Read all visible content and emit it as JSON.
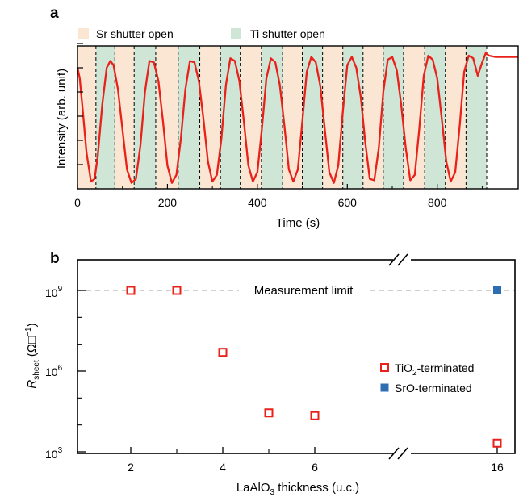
{
  "chart_data": [
    {
      "panel": "a",
      "type": "line",
      "xlabel": "Time (s)",
      "ylabel": "Intensity (arb. unit)",
      "xlim": [
        0,
        980
      ],
      "xticks": [
        "0",
        "200",
        "400",
        "600",
        "800"
      ],
      "xtick_values": [
        0,
        200,
        400,
        600,
        800
      ],
      "legend": [
        {
          "label": "Sr shutter open",
          "color": "#fbe6d3"
        },
        {
          "label": "Ti shutter open",
          "color": "#cfe6d6"
        }
      ],
      "shutter_boundaries_s": [
        0,
        41,
        83,
        126,
        174,
        224,
        272,
        318,
        362,
        409,
        456,
        500,
        545,
        590,
        635,
        680,
        725,
        772,
        818,
        864,
        910
      ],
      "first_shutter": "Sr",
      "curve_color": "#e8211a",
      "series": [
        {
          "x": [
            0,
            5,
            12,
            20,
            30,
            38,
            45,
            55,
            65,
            73,
            80,
            90,
            100,
            110,
            120,
            130,
            140,
            150,
            160,
            170,
            180,
            190,
            200,
            210,
            220,
            230,
            240,
            250,
            260,
            270,
            280,
            290,
            300,
            310,
            320,
            330,
            340,
            350,
            360,
            370,
            380,
            390,
            400,
            410,
            420,
            430,
            440,
            450,
            460,
            470,
            480,
            490,
            500,
            510,
            520,
            530,
            540,
            550,
            560,
            570,
            580,
            590,
            600,
            610,
            620,
            630,
            640,
            650,
            660,
            670,
            680,
            690,
            700,
            710,
            720,
            730,
            740,
            750,
            760,
            770,
            780,
            790,
            800,
            810,
            820,
            830,
            840,
            850,
            860,
            870,
            880,
            890,
            900,
            908,
            915,
            930,
            950,
            980
          ],
          "y": [
            0.88,
            0.8,
            0.55,
            0.25,
            0.03,
            0.05,
            0.22,
            0.6,
            0.88,
            0.93,
            0.9,
            0.72,
            0.42,
            0.12,
            0.02,
            0.05,
            0.3,
            0.7,
            0.93,
            0.92,
            0.78,
            0.48,
            0.15,
            0.02,
            0.08,
            0.35,
            0.72,
            0.93,
            0.92,
            0.78,
            0.5,
            0.18,
            0.03,
            0.08,
            0.35,
            0.75,
            0.95,
            0.93,
            0.78,
            0.48,
            0.15,
            0.03,
            0.1,
            0.42,
            0.8,
            0.95,
            0.92,
            0.75,
            0.45,
            0.12,
            0.03,
            0.12,
            0.48,
            0.85,
            0.96,
            0.92,
            0.74,
            0.42,
            0.1,
            0.02,
            0.15,
            0.55,
            0.9,
            0.96,
            0.88,
            0.66,
            0.32,
            0.05,
            0.04,
            0.28,
            0.7,
            0.94,
            0.96,
            0.86,
            0.6,
            0.28,
            0.04,
            0.08,
            0.42,
            0.82,
            0.97,
            0.94,
            0.8,
            0.5,
            0.18,
            0.03,
            0.1,
            0.45,
            0.85,
            0.97,
            0.95,
            0.82,
            0.92,
            0.99,
            0.97,
            0.96,
            0.96,
            0.96
          ]
        }
      ]
    },
    {
      "panel": "b",
      "type": "scatter",
      "xlabel": "LaAlO₃ thickness (u.c.)",
      "ylabel": "R_sheet (Ω□⁻¹)",
      "y_scale": "log",
      "ylim": [
        1000,
        3000000000
      ],
      "yticks": [
        1000,
        1000000,
        1000000000
      ],
      "xticks": [
        "2",
        "4",
        "6",
        "16"
      ],
      "x_axis_break": true,
      "annotation": "Measurement limit",
      "measurement_limit": 1000000000,
      "series": [
        {
          "name": "TiO₂-terminated",
          "marker": "open-square",
          "color": "#e8211a",
          "x": [
            2,
            3,
            4,
            5,
            6,
            16
          ],
          "y": [
            1000000000,
            1000000000,
            5000000,
            28000,
            22000,
            2100
          ]
        },
        {
          "name": "SrO-terminated",
          "marker": "filled-square",
          "color": "#2f6db3",
          "x": [
            16
          ],
          "y": [
            1000000000
          ]
        }
      ]
    }
  ],
  "labels": {
    "panel_a": "a",
    "panel_b": "b",
    "a_xlabel": "Time (s)",
    "a_ylabel": "Intensity (arb. unit)",
    "a_legend_sr": "Sr shutter open",
    "a_legend_ti": "Ti shutter open",
    "b_xlabel_main": "LaAlO",
    "b_xlabel_sub": "3",
    "b_xlabel_rest": " thickness (u.c.)",
    "b_ylabel_main": "R",
    "b_ylabel_sub": "sheet",
    "b_ylabel_unit": " (Ω□",
    "b_ylabel_sup": "−1",
    "b_ylabel_close": ")",
    "b_annotation": "Measurement limit",
    "b_legend_ti_main": "TiO",
    "b_legend_ti_sub": "2",
    "b_legend_ti_rest": "-terminated",
    "b_legend_sr": "SrO-terminated",
    "b_ytick_3_base": "10",
    "b_ytick_3_exp": "3",
    "b_ytick_6_base": "10",
    "b_ytick_6_exp": "6",
    "b_ytick_9_base": "10",
    "b_ytick_9_exp": "9"
  }
}
